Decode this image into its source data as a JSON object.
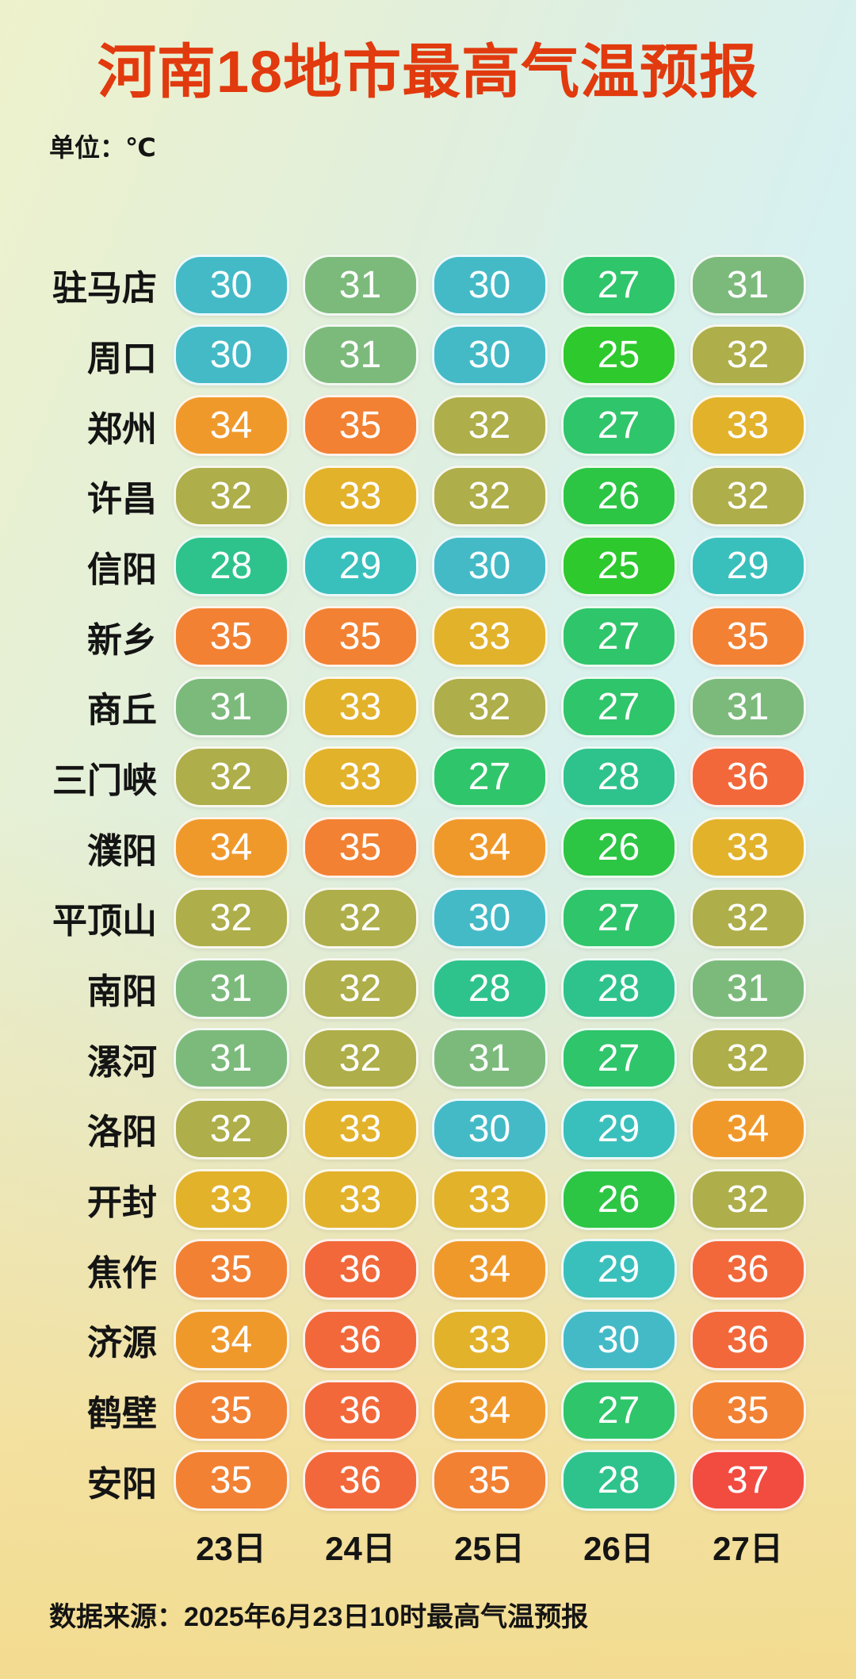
{
  "title": "河南18地市最高气温预报",
  "unit_label": "单位：℃",
  "source_note": "数据来源：2025年6月23日10时最高气温预报",
  "colors": {
    "title": "#e13a0e",
    "text": "#141414",
    "pill_text": "#ffffff",
    "temp_scale": {
      "25": "#2dc92d",
      "26": "#2cc644",
      "27": "#2fc56a",
      "28": "#2ec38c",
      "29": "#3ac0bc",
      "30": "#44bac7",
      "31": "#7cba7c",
      "32": "#aeae4a",
      "33": "#e2b22b",
      "34": "#f0992b",
      "35": "#f28133",
      "36": "#f2683a",
      "37": "#f24b40"
    }
  },
  "chart_data": {
    "type": "heatmap",
    "title": "河南18地市最高气温预报",
    "unit": "℃",
    "columns": [
      "23日",
      "24日",
      "25日",
      "26日",
      "27日"
    ],
    "rows": [
      {
        "city": "驻马店",
        "temps": [
          30,
          31,
          30,
          27,
          31
        ]
      },
      {
        "city": "周口",
        "temps": [
          30,
          31,
          30,
          25,
          32
        ]
      },
      {
        "city": "郑州",
        "temps": [
          34,
          35,
          32,
          27,
          33
        ]
      },
      {
        "city": "许昌",
        "temps": [
          32,
          33,
          32,
          26,
          32
        ]
      },
      {
        "city": "信阳",
        "temps": [
          28,
          29,
          30,
          25,
          29
        ]
      },
      {
        "city": "新乡",
        "temps": [
          35,
          35,
          33,
          27,
          35
        ]
      },
      {
        "city": "商丘",
        "temps": [
          31,
          33,
          32,
          27,
          31
        ]
      },
      {
        "city": "三门峡",
        "temps": [
          32,
          33,
          27,
          28,
          36
        ]
      },
      {
        "city": "濮阳",
        "temps": [
          34,
          35,
          34,
          26,
          33
        ]
      },
      {
        "city": "平顶山",
        "temps": [
          32,
          32,
          30,
          27,
          32
        ]
      },
      {
        "city": "南阳",
        "temps": [
          31,
          32,
          28,
          28,
          31
        ]
      },
      {
        "city": "漯河",
        "temps": [
          31,
          32,
          31,
          27,
          32
        ]
      },
      {
        "city": "洛阳",
        "temps": [
          32,
          33,
          30,
          29,
          34
        ]
      },
      {
        "city": "开封",
        "temps": [
          33,
          33,
          33,
          26,
          32
        ]
      },
      {
        "city": "焦作",
        "temps": [
          35,
          36,
          34,
          29,
          36
        ]
      },
      {
        "city": "济源",
        "temps": [
          34,
          36,
          33,
          30,
          36
        ]
      },
      {
        "city": "鹤壁",
        "temps": [
          35,
          36,
          34,
          27,
          35
        ]
      },
      {
        "city": "安阳",
        "temps": [
          35,
          36,
          35,
          28,
          37
        ]
      }
    ],
    "value_range": [
      25,
      37
    ],
    "legend": "none"
  }
}
